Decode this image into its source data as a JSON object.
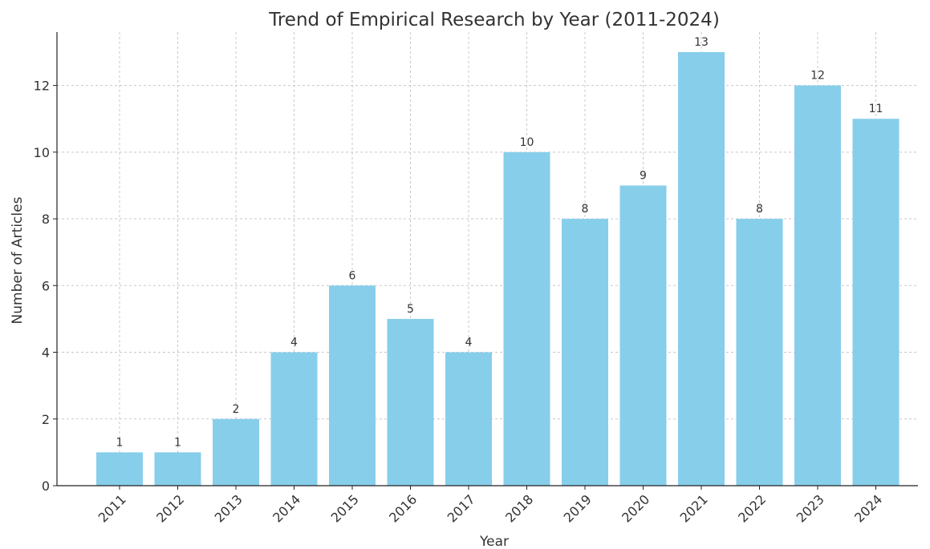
{
  "chart_data": {
    "type": "bar",
    "title": "Trend of Empirical Research by Year (2011-2024)",
    "xlabel": "Year",
    "ylabel": "Number of Articles",
    "categories": [
      "2011",
      "2012",
      "2013",
      "2014",
      "2015",
      "2016",
      "2017",
      "2018",
      "2019",
      "2020",
      "2021",
      "2022",
      "2023",
      "2024"
    ],
    "values": [
      1,
      1,
      2,
      4,
      6,
      5,
      4,
      10,
      8,
      9,
      13,
      8,
      12,
      11
    ],
    "yticks": [
      0,
      2,
      4,
      6,
      8,
      10,
      12
    ],
    "ylim": [
      0,
      13.6
    ],
    "grid": true,
    "data_labels": true,
    "bar_color": "#87ceeb"
  }
}
